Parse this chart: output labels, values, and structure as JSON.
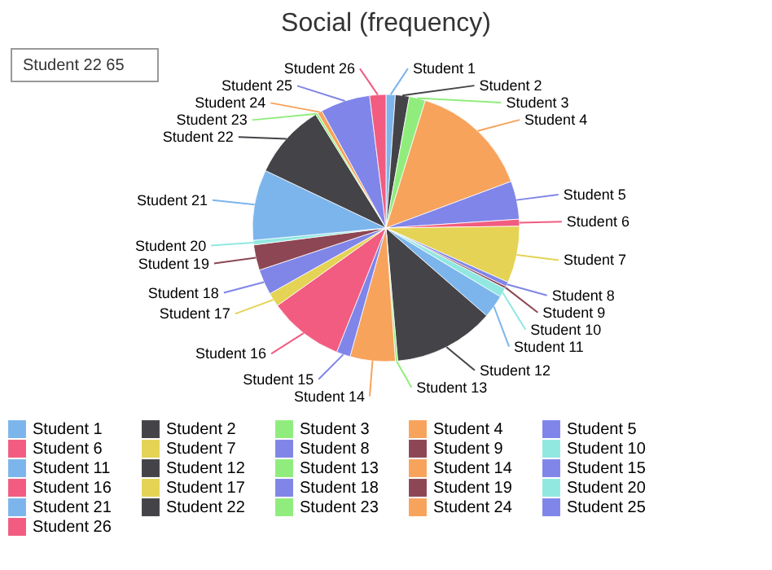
{
  "chart_data": {
    "type": "pie",
    "title": "Social (frequency)",
    "categories": [
      "Student 1",
      "Student 2",
      "Student 3",
      "Student 4",
      "Student 5",
      "Student 6",
      "Student 7",
      "Student 8",
      "Student 9",
      "Student 10",
      "Student 11",
      "Student 12",
      "Student 13",
      "Student 14",
      "Student 15",
      "Student 16",
      "Student 17",
      "Student 18",
      "Student 19",
      "Student 20",
      "Student 21",
      "Student 22",
      "Student 23",
      "Student 24",
      "Student 25",
      "Student 26"
    ],
    "values": [
      8,
      12,
      14,
      104,
      33,
      6,
      49,
      4,
      2,
      8,
      20,
      87,
      2,
      39,
      12,
      65,
      12,
      22,
      22,
      4,
      61,
      65,
      2,
      4,
      43,
      14
    ],
    "colors": [
      "#7cb5ec",
      "#434348",
      "#90ed7d",
      "#f7a35c",
      "#8085e9",
      "#f15c80",
      "#e4d354",
      "#8085e8",
      "#8d4653",
      "#91e8e1",
      "#7cb5ec",
      "#434348",
      "#90ed7d",
      "#f7a35c",
      "#8085e9",
      "#f15c80",
      "#e4d354",
      "#8085e8",
      "#8d4653",
      "#91e8e1",
      "#7cb5ec",
      "#434348",
      "#90ed7d",
      "#f7a35c",
      "#8085e9",
      "#f15c80"
    ],
    "annotations": [
      "Student 22  65"
    ],
    "legend": "bottom"
  }
}
